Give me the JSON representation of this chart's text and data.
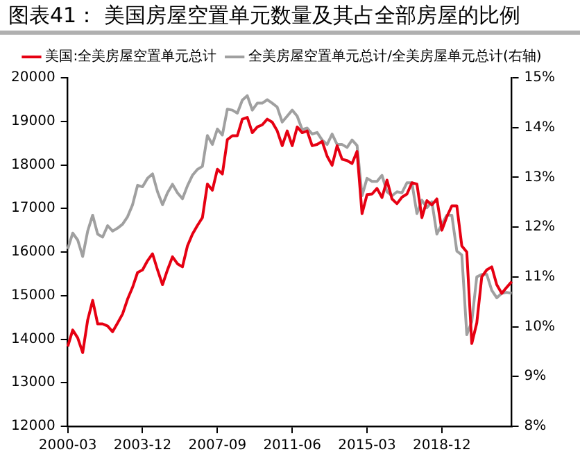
{
  "chart_data": {
    "type": "line",
    "title": "图表41： 美国房屋空置单元数量及其占全部房屋的比例",
    "categories": [
      "2000-03",
      null,
      null,
      null,
      null,
      null,
      null,
      null,
      null,
      null,
      null,
      null,
      null,
      null,
      null,
      "2003-12",
      null,
      null,
      null,
      null,
      null,
      null,
      null,
      null,
      null,
      null,
      null,
      null,
      null,
      null,
      "2007-09",
      null,
      null,
      null,
      null,
      null,
      null,
      null,
      null,
      null,
      null,
      null,
      null,
      null,
      null,
      "2011-06",
      null,
      null,
      null,
      null,
      null,
      null,
      null,
      null,
      null,
      null,
      null,
      null,
      null,
      null,
      "2015-03",
      null,
      null,
      null,
      null,
      null,
      null,
      null,
      null,
      null,
      null,
      null,
      null,
      null,
      null,
      "2018-12",
      null,
      null,
      null,
      null,
      null,
      null,
      null,
      null,
      null,
      null,
      null,
      null,
      null,
      null
    ],
    "series": [
      {
        "name": "美国:全美房屋空置单元总计",
        "color": "#e60012",
        "values": [
          13830,
          14210,
          14030,
          13690,
          14440,
          14890,
          14350,
          14350,
          14300,
          14170,
          14370,
          14580,
          14920,
          15190,
          15530,
          15590,
          15800,
          15960,
          15590,
          15250,
          15590,
          15890,
          15730,
          15660,
          16140,
          16410,
          16610,
          16790,
          17560,
          17420,
          17900,
          17790,
          18580,
          18670,
          18670,
          19050,
          19090,
          18740,
          18870,
          18920,
          19050,
          18980,
          18780,
          18440,
          18780,
          18440,
          18870,
          18740,
          18780,
          18440,
          18470,
          18540,
          18200,
          17990,
          18440,
          18130,
          18100,
          18030,
          18310,
          16880,
          17320,
          17330,
          17460,
          17250,
          17650,
          17220,
          17110,
          17260,
          17330,
          17590,
          17560,
          16790,
          17180,
          17080,
          17220,
          16500,
          16810,
          17060,
          17060,
          16140,
          16000,
          13900,
          14370,
          15430,
          15590,
          15660,
          15250,
          15050,
          15190,
          15320
        ]
      },
      {
        "name": "全美房屋空置单元总计/全美房屋单元总计(右轴)",
        "color": "#a0a0a0",
        "axis": "y2",
        "values": [
          11.56,
          11.88,
          11.74,
          11.41,
          11.92,
          12.24,
          11.86,
          11.8,
          12.03,
          11.92,
          11.98,
          12.06,
          12.21,
          12.45,
          12.84,
          12.81,
          12.98,
          13.07,
          12.71,
          12.45,
          12.69,
          12.86,
          12.69,
          12.57,
          12.83,
          13.04,
          13.16,
          13.22,
          13.84,
          13.66,
          13.97,
          13.85,
          14.37,
          14.35,
          14.29,
          14.55,
          14.64,
          14.35,
          14.49,
          14.49,
          14.56,
          14.49,
          14.41,
          14.11,
          14.23,
          14.35,
          14.23,
          13.96,
          13.99,
          13.87,
          13.9,
          13.75,
          13.66,
          13.87,
          13.66,
          13.66,
          13.6,
          13.75,
          13.64,
          12.63,
          12.98,
          12.92,
          12.92,
          13.04,
          12.71,
          12.63,
          12.71,
          12.69,
          12.89,
          12.89,
          12.27,
          12.54,
          12.39,
          12.51,
          11.86,
          12.06,
          12.24,
          12.24,
          11.52,
          11.44,
          9.84,
          10.1,
          11.0,
          11.05,
          11.05,
          10.73,
          10.58,
          10.67,
          10.69,
          10.67
        ]
      }
    ],
    "ylim": [
      12000,
      20000
    ],
    "yticks": [
      12000,
      13000,
      14000,
      15000,
      16000,
      17000,
      18000,
      19000,
      20000
    ],
    "y2lim": [
      8,
      15
    ],
    "y2ticks": [
      {
        "value": 8,
        "label": "8%"
      },
      {
        "value": 9,
        "label": "9%"
      },
      {
        "value": 10,
        "label": "10%"
      },
      {
        "value": 11,
        "label": "11%"
      },
      {
        "value": 12,
        "label": "12%"
      },
      {
        "value": 13,
        "label": "13%"
      },
      {
        "value": 14,
        "label": "14%"
      },
      {
        "value": 15,
        "label": "15%"
      }
    ],
    "legend": "top",
    "grid": false,
    "marker": "none",
    "line_style": "solid"
  }
}
